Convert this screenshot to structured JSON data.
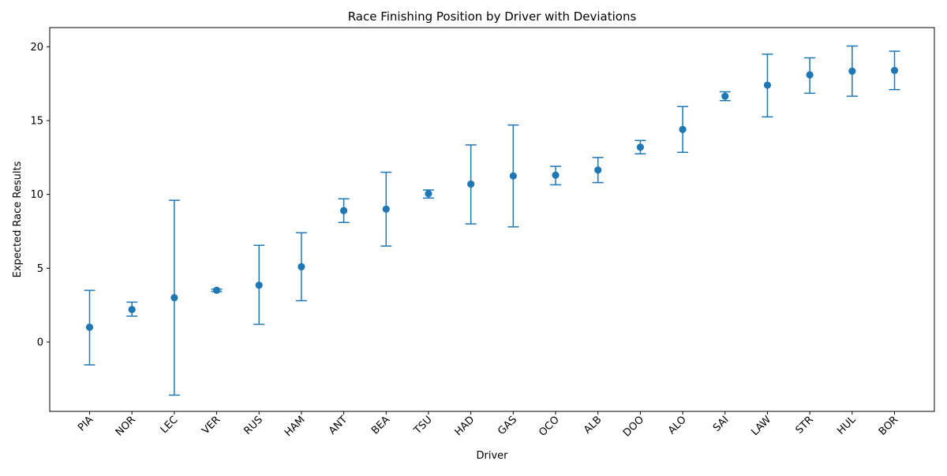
{
  "chart_data": {
    "type": "scatter",
    "title": "Race Finishing Position by Driver with Deviations",
    "xlabel": "Driver",
    "ylabel": "Expected Race Results",
    "ylim": [
      -4.7,
      21.3
    ],
    "y_ticks": [
      0,
      5,
      10,
      15,
      20
    ],
    "grid": false,
    "legend": "none",
    "marker_color": "#1f77b4",
    "categories": [
      "PIA",
      "NOR",
      "LEC",
      "VER",
      "RUS",
      "HAM",
      "ANT",
      "BEA",
      "TSU",
      "HAD",
      "GAS",
      "OCO",
      "ALB",
      "DOO",
      "ALO",
      "SAI",
      "LAW",
      "STR",
      "HUL",
      "BOR"
    ],
    "series": [
      {
        "values": [
          1.0,
          2.2,
          3.0,
          3.5,
          3.85,
          5.1,
          8.9,
          9.0,
          10.05,
          10.7,
          11.25,
          11.3,
          11.65,
          13.2,
          14.4,
          16.65,
          17.4,
          18.1,
          18.35,
          18.4
        ],
        "error_low": [
          -1.55,
          1.75,
          -3.6,
          3.42,
          1.2,
          2.8,
          8.1,
          6.5,
          9.75,
          8.0,
          7.8,
          10.65,
          10.8,
          12.75,
          12.85,
          16.35,
          15.25,
          16.85,
          16.65,
          17.1
        ],
        "error_high": [
          3.5,
          2.7,
          9.6,
          3.58,
          6.55,
          7.4,
          9.7,
          11.5,
          10.3,
          13.35,
          14.7,
          11.9,
          12.5,
          13.65,
          15.95,
          16.95,
          19.5,
          19.25,
          20.05,
          19.7
        ]
      }
    ]
  }
}
